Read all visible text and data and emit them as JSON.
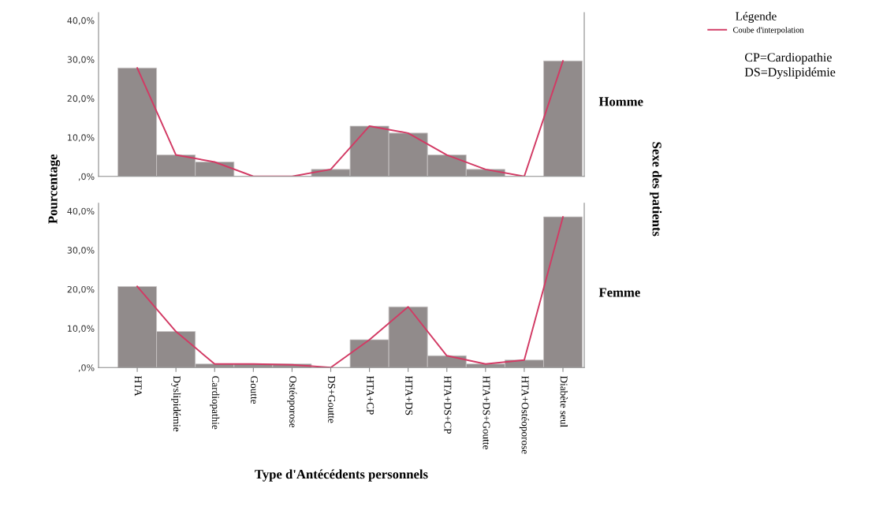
{
  "chart_data": [
    {
      "type": "bar",
      "ylabel": "Pourcentage",
      "y2label": "Sexe des patients",
      "legend_title": "Légende",
      "legend": "top right",
      "tick_labels": "y",
      "grid": false,
      "categories": [
        null,
        null,
        null,
        null,
        null,
        null,
        null,
        null,
        null,
        null,
        null,
        null
      ],
      "ylim": [
        0,
        42
      ],
      "yticks": [
        {
          "value": 0,
          "label": ",0%"
        },
        {
          "value": 10,
          "label": "10,0%"
        },
        {
          "value": 20,
          "label": "20,0%"
        },
        {
          "value": 30,
          "label": "30,0%"
        },
        {
          "value": 40,
          "label": "40,0%"
        }
      ],
      "annotations": [
        "Homme",
        "CP=Cardiopathie",
        "DS=Dyslipidémie"
      ],
      "series": [
        {
          "color": "#918b8b",
          "values": [
            27.8,
            5.5,
            3.7,
            0,
            0,
            1.8,
            12.9,
            11.1,
            5.5,
            1.8,
            0,
            29.6
          ]
        },
        {
          "type": "line",
          "name": "Coube d'interpolation",
          "color": "#d23a64",
          "values": [
            27.8,
            5.5,
            3.7,
            0,
            0,
            1.8,
            12.9,
            11.1,
            5.5,
            1.8,
            0,
            29.6
          ]
        }
      ]
    },
    {
      "type": "bar",
      "xlabel": "Type d'Antécédents personnels",
      "grid": false,
      "categories": [
        "HTA",
        "Dyslipidémie",
        "Cardiopathie",
        "Goutte",
        "Ostéoporose",
        "DS+Goutte",
        "HTA+CP",
        "HTA+DS",
        "HTA+DS+CP",
        "HTA+DS+Goutte",
        "HTA+Ostéoporose",
        "Diabète seul"
      ],
      "ylim": [
        0,
        42
      ],
      "yticks": [
        {
          "value": 0,
          "label": ",0%"
        },
        {
          "value": 10,
          "label": "10,0%"
        },
        {
          "value": 20,
          "label": "20,0%"
        },
        {
          "value": 30,
          "label": "30,0%"
        },
        {
          "value": 40,
          "label": "40,0%"
        }
      ],
      "annotations": [
        "Femme"
      ],
      "series": [
        {
          "color": "#918b8b",
          "values": [
            20.7,
            9.2,
            0.9,
            0.9,
            0.9,
            0,
            7.1,
            15.5,
            3.0,
            0.9,
            1.9,
            38.5
          ]
        },
        {
          "type": "line",
          "color": "#d23a64",
          "values": [
            20.7,
            9.2,
            0.9,
            0.9,
            0.7,
            0,
            7.1,
            15.5,
            3.0,
            0.9,
            1.9,
            38.5
          ]
        }
      ]
    }
  ]
}
